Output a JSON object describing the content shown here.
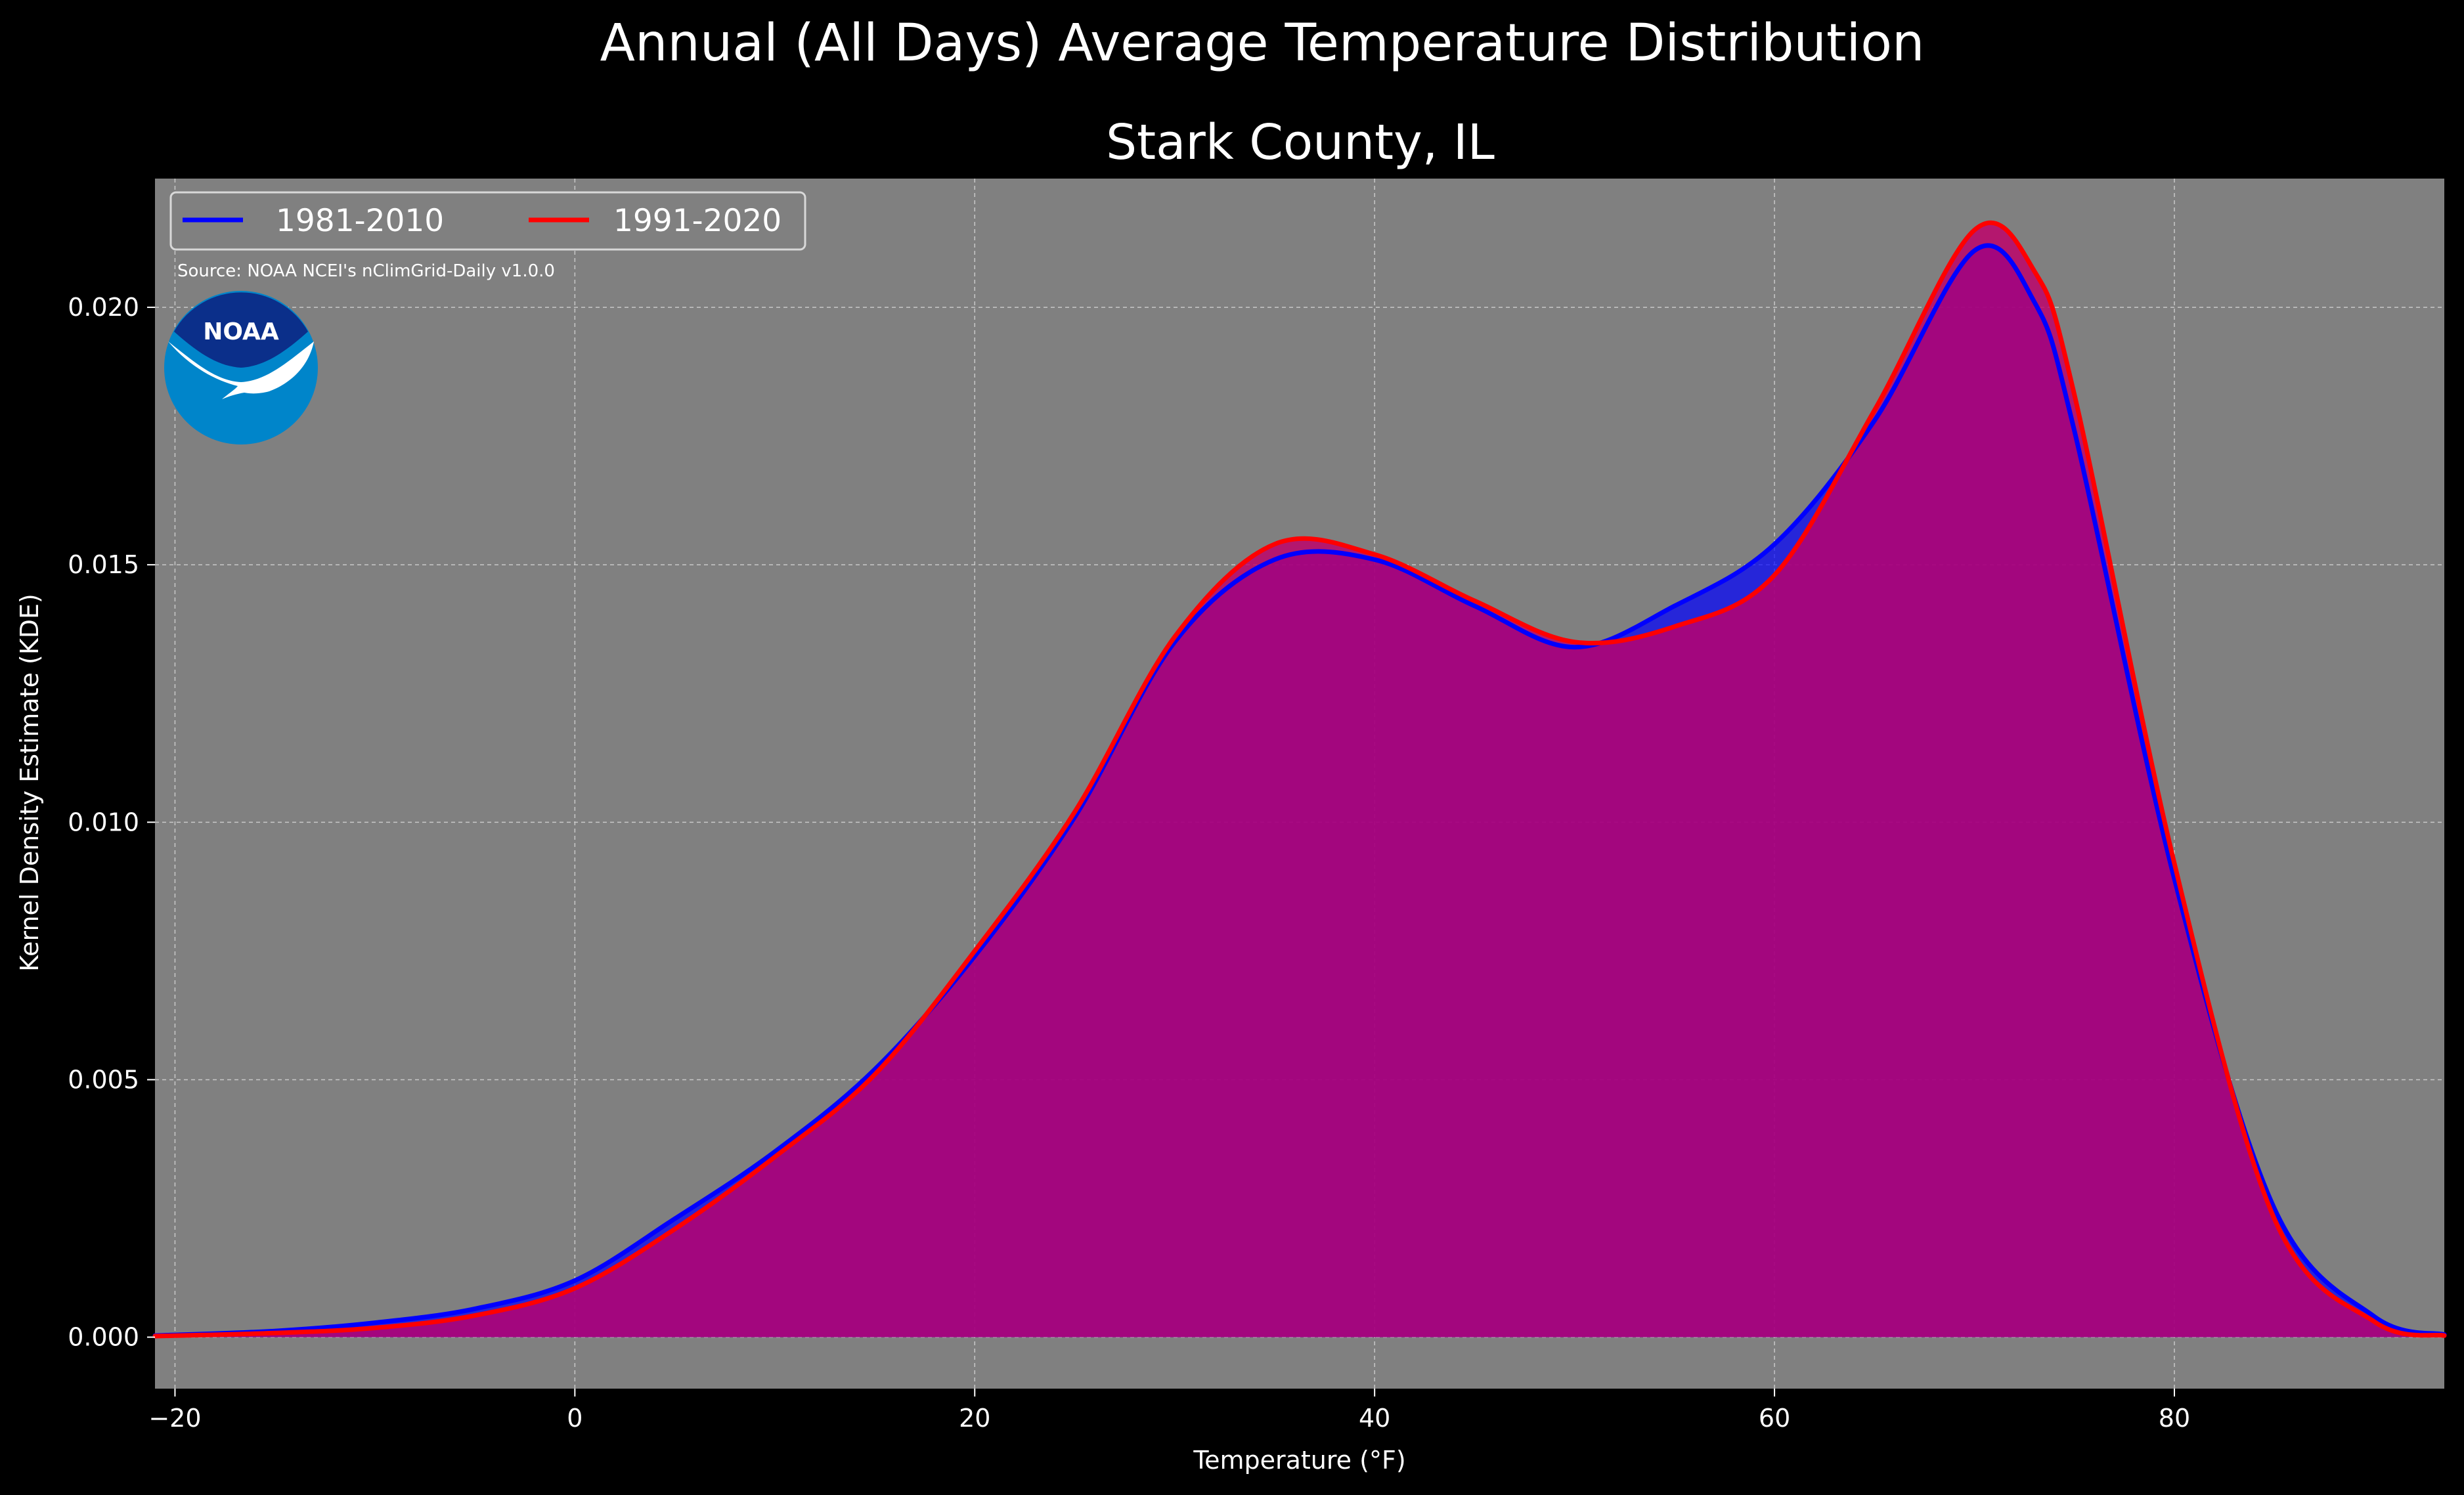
{
  "title": "Annual (All Days) Average Temperature Distribution",
  "subtitle": "Stark County, IL",
  "source": "Source: NOAA NCEI's nClimGrid-Daily v1.0.0",
  "logo_text": "NOAA",
  "colors": {
    "background": "#000000",
    "plot_background": "#808080",
    "series_1981": "#0000ff",
    "series_1991": "#ff0000",
    "fill_1981": "#0000ff",
    "fill_1991": "#c0006a",
    "logo_dark": "#0b2f8a",
    "logo_light": "#0085ca"
  },
  "chart_data": {
    "type": "area",
    "title": "Annual (All Days) Average Temperature Distribution",
    "subtitle": "Stark County, IL",
    "xlabel": "Temperature (°F)",
    "ylabel": "Kernel Density Estimate (KDE)",
    "xlim": [
      -21,
      93.5
    ],
    "ylim": [
      -0.001,
      0.0225
    ],
    "xticks": [
      -20,
      0,
      20,
      40,
      60,
      80
    ],
    "xtick_labels": [
      "−20",
      "0",
      "20",
      "40",
      "60",
      "80"
    ],
    "yticks": [
      0.0,
      0.005,
      0.01,
      0.015,
      0.02
    ],
    "ytick_labels": [
      "0.000",
      "0.005",
      "0.010",
      "0.015",
      "0.020"
    ],
    "grid": true,
    "legend_placement": "top-left",
    "series": [
      {
        "name": "1981-2010",
        "x": [
          -21,
          -15,
          -10,
          -5,
          0,
          5,
          10,
          15,
          20,
          25,
          30,
          35,
          40,
          45,
          50,
          55,
          60,
          65,
          70,
          73,
          75,
          80,
          85,
          90,
          93.5
        ],
        "values": [
          3e-05,
          0.00012,
          0.00028,
          0.00055,
          0.0011,
          0.0023,
          0.0036,
          0.0052,
          0.0074,
          0.0101,
          0.0135,
          0.0151,
          0.0151,
          0.0142,
          0.0134,
          0.0142,
          0.0154,
          0.0178,
          0.0211,
          0.0201,
          0.0176,
          0.0089,
          0.0025,
          0.0004,
          5e-05
        ]
      },
      {
        "name": "1991-2020",
        "x": [
          -21,
          -15,
          -10,
          -5,
          0,
          5,
          10,
          15,
          20,
          25,
          30,
          35,
          40,
          45,
          50,
          55,
          60,
          65,
          70,
          73,
          75,
          80,
          85,
          90,
          93.5
        ],
        "values": [
          2e-05,
          8e-05,
          0.00018,
          0.00042,
          0.00095,
          0.0021,
          0.0035,
          0.0051,
          0.0075,
          0.0102,
          0.0136,
          0.0154,
          0.0152,
          0.0143,
          0.0135,
          0.0138,
          0.0148,
          0.018,
          0.0215,
          0.0207,
          0.0183,
          0.0092,
          0.0023,
          0.0003,
          3e-05
        ]
      }
    ]
  }
}
